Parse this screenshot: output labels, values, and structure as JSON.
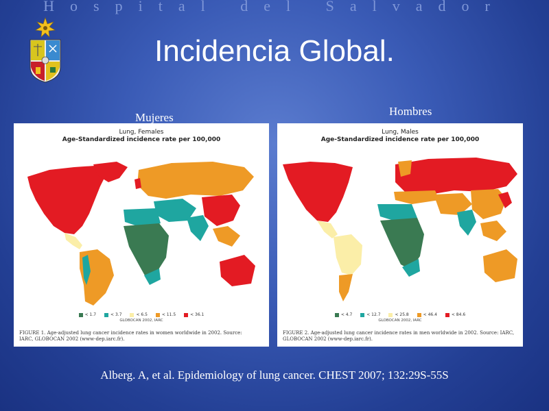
{
  "header": {
    "institution": "Hospital del Salvador"
  },
  "slide": {
    "title": "Incidencia Global."
  },
  "panels": {
    "women": {
      "label": "Mujeres",
      "title_line1": "Lung, Females",
      "title_line2": "Age-Standardized incidence rate per 100,000",
      "legend": [
        {
          "label": "< 1.7",
          "color": "#3a7a52"
        },
        {
          "label": "< 3.7",
          "color": "#1fa6a0"
        },
        {
          "label": "< 6.5",
          "color": "#fbeea8"
        },
        {
          "label": "< 11.5",
          "color": "#ee9a26"
        },
        {
          "label": "< 36.1",
          "color": "#e31b23"
        }
      ],
      "source": "GLOBOCAN 2002, IARC",
      "caption": "FIGURE 1. Age-adjusted lung cancer incidence rates in women worldwide in 2002. Source: IARC, GLOBOCAN 2002 (www-dep.iarc.fr)."
    },
    "men": {
      "label": "Hombres",
      "title_line1": "Lung, Males",
      "title_line2": "Age-Standardized incidence rate per 100,000",
      "legend": [
        {
          "label": "< 4.7",
          "color": "#3a7a52"
        },
        {
          "label": "< 12.7",
          "color": "#1fa6a0"
        },
        {
          "label": "< 25.8",
          "color": "#fbeea8"
        },
        {
          "label": "< 46.4",
          "color": "#ee9a26"
        },
        {
          "label": "< 84.6",
          "color": "#e31b23"
        }
      ],
      "source": "GLOBOCAN 2002, IARC",
      "caption": "FIGURE 2. Age-adjusted lung cancer incidence rates in men worldwide in 2002. Source: IARC, GLOBOCAN 2002 (www-dep.iarc.fr)."
    }
  },
  "citation": "Alberg. A, et al. Epidemiology of lung cancer. CHEST 2007; 132:29S-55S",
  "colors": {
    "class1": "#3a7a52",
    "class2": "#1fa6a0",
    "class3": "#fbeea8",
    "class4": "#ee9a26",
    "class5": "#e31b23"
  }
}
